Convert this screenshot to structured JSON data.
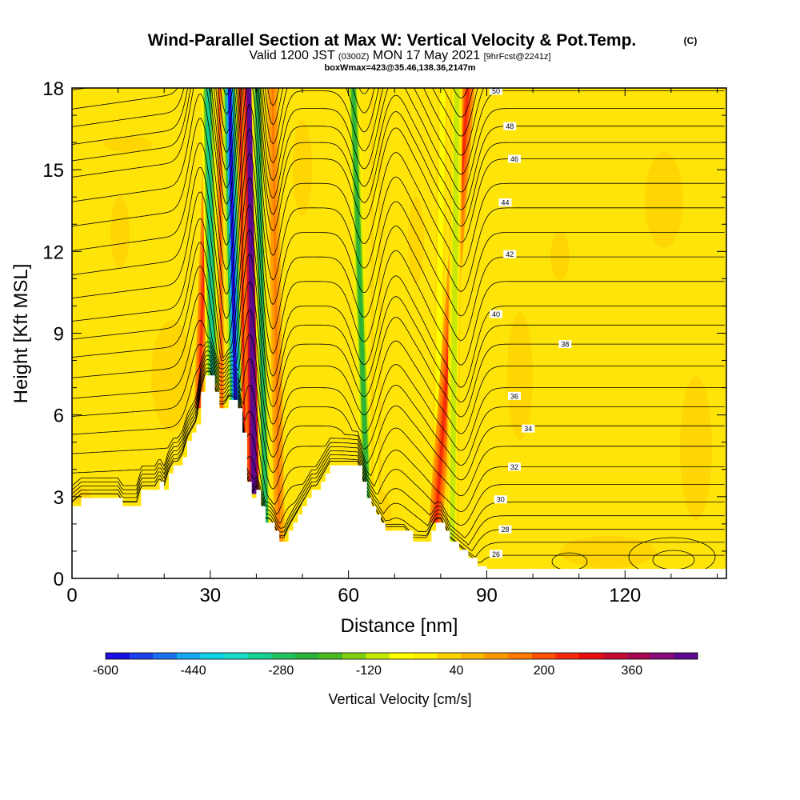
{
  "header": {
    "title_main": "Wind-Parallel Section at Max W: Vertical Velocity & Pot.Temp.",
    "title_copyright": "(C)",
    "valid_prefix": "Valid 1200 JST",
    "valid_zulu": "(0300Z)",
    "valid_day": "MON 17 May 2021",
    "valid_fcst": "[9hrFcst@2241z]",
    "box_info": "boxWmax=423@35.46,138.36,2147m"
  },
  "chart_data": {
    "type": "heatmap",
    "title": "Wind-Parallel Section at Max W: Vertical Velocity & Pot.Temp.",
    "xlabel": "Distance [nm]",
    "ylabel": "Height [Kft MSL]",
    "xlim": [
      0,
      142
    ],
    "ylim": [
      0,
      18
    ],
    "x_ticks": [
      0,
      30,
      60,
      90,
      120
    ],
    "x_tick_labels": [
      "0",
      "30",
      "60",
      "90",
      "120"
    ],
    "y_ticks": [
      0,
      3,
      6,
      9,
      12,
      15,
      18
    ],
    "y_tick_labels": [
      "0",
      "3",
      "6",
      "9",
      "12",
      "15",
      "18"
    ],
    "colorbar": {
      "label": "Vertical Velocity [cm/s]",
      "min": -600,
      "max": 480,
      "step": 40,
      "tick_values": [
        -600,
        -440,
        -280,
        -120,
        40,
        200,
        360
      ],
      "tick_labels": [
        "-600",
        "-440",
        "-280",
        "-120",
        "40",
        "200",
        "360"
      ],
      "colors": [
        "#1a0fe0",
        "#1c3fea",
        "#1b6ff0",
        "#14a8f0",
        "#10d2e8",
        "#14dcc6",
        "#18d090",
        "#22c060",
        "#2cb23a",
        "#4aba22",
        "#84d010",
        "#c8e80a",
        "#ffff00",
        "#fff000",
        "#ffd400",
        "#ffb800",
        "#ff9a00",
        "#ff7800",
        "#ff5200",
        "#f42a0a",
        "#e8100e",
        "#c80a30",
        "#a80a52",
        "#880a78",
        "#5a0a8a"
      ]
    },
    "terrain_kft": [
      [
        0,
        2.65
      ],
      [
        2,
        2.95
      ],
      [
        5,
        2.95
      ],
      [
        8,
        2.95
      ],
      [
        10,
        2.95
      ],
      [
        11,
        2.65
      ],
      [
        14,
        2.65
      ],
      [
        15,
        3.25
      ],
      [
        16,
        3.25
      ],
      [
        18,
        3.25
      ],
      [
        19,
        3.55
      ],
      [
        20,
        3.25
      ],
      [
        21,
        3.85
      ],
      [
        22,
        4.15
      ],
      [
        23,
        4.15
      ],
      [
        24,
        4.45
      ],
      [
        25,
        5.05
      ],
      [
        26,
        5.35
      ],
      [
        27,
        5.65
      ],
      [
        28,
        6.85
      ],
      [
        29,
        7.45
      ],
      [
        30,
        7.45
      ],
      [
        31,
        6.85
      ],
      [
        32,
        6.25
      ],
      [
        33,
        6.25
      ],
      [
        34,
        6.55
      ],
      [
        35,
        6.55
      ],
      [
        36,
        6.25
      ],
      [
        37,
        5.35
      ],
      [
        38,
        3.55
      ],
      [
        39,
        2.95
      ],
      [
        40,
        3.25
      ],
      [
        41,
        2.65
      ],
      [
        42,
        2.05
      ],
      [
        43,
        2.05
      ],
      [
        44,
        1.75
      ],
      [
        45,
        1.35
      ],
      [
        46,
        1.35
      ],
      [
        47,
        1.75
      ],
      [
        48,
        2.05
      ],
      [
        49,
        2.35
      ],
      [
        50,
        2.65
      ],
      [
        51,
        2.95
      ],
      [
        52,
        3.25
      ],
      [
        53,
        3.25
      ],
      [
        54,
        3.55
      ],
      [
        55,
        3.85
      ],
      [
        56,
        4.15
      ],
      [
        58,
        4.15
      ],
      [
        60,
        4.15
      ],
      [
        62,
        4.15
      ],
      [
        63,
        3.55
      ],
      [
        64,
        2.95
      ],
      [
        65,
        2.65
      ],
      [
        66,
        2.35
      ],
      [
        67,
        2.05
      ],
      [
        68,
        1.75
      ],
      [
        70,
        1.75
      ],
      [
        72,
        1.75
      ],
      [
        74,
        1.35
      ],
      [
        76,
        1.35
      ],
      [
        77,
        1.35
      ],
      [
        78,
        1.75
      ],
      [
        79,
        2.05
      ],
      [
        80,
        2.05
      ],
      [
        81,
        1.75
      ],
      [
        82,
        1.35
      ],
      [
        84,
        1.05
      ],
      [
        86,
        0.75
      ],
      [
        88,
        0.45
      ],
      [
        90,
        0.35
      ],
      [
        95,
        0.35
      ],
      [
        100,
        0.35
      ],
      [
        110,
        0.35
      ],
      [
        120,
        0.35
      ],
      [
        130,
        0.35
      ],
      [
        142,
        0.35
      ]
    ],
    "theta_isentropes": [
      {
        "level": 26,
        "base_kft": 0.85,
        "label_x": 92,
        "label_y_kft": 0.9
      },
      {
        "level": 28,
        "base_kft": 1.8,
        "label_x": 94,
        "label_y_kft": 1.8
      },
      {
        "level": 30,
        "base_kft": 2.8,
        "label_x": 93,
        "label_y_kft": 2.9
      },
      {
        "level": 32,
        "base_kft": 4.1,
        "label_x": 96,
        "label_y_kft": 4.1
      },
      {
        "level": 34,
        "base_kft": 5.6,
        "label_x": 99,
        "label_y_kft": 5.5
      },
      {
        "level": 36,
        "base_kft": 7.0,
        "label_x": 96,
        "label_y_kft": 6.7
      },
      {
        "level": 38,
        "base_kft": 8.6,
        "label_x": 107,
        "label_y_kft": 8.6
      },
      {
        "level": 40,
        "base_kft": 10.0,
        "label_x": 92,
        "label_y_kft": 9.7
      },
      {
        "level": 42,
        "base_kft": 11.8,
        "label_x": 95,
        "label_y_kft": 11.9
      },
      {
        "level": 44,
        "base_kft": 13.6,
        "label_x": 94,
        "label_y_kft": 13.8
      },
      {
        "level": 46,
        "base_kft": 15.4,
        "label_x": 96,
        "label_y_kft": 15.4
      },
      {
        "level": 48,
        "base_kft": 16.6,
        "label_x": 95,
        "label_y_kft": 16.6
      },
      {
        "level": 50,
        "base_kft": 17.9,
        "label_x": 92,
        "label_y_kft": 17.9
      }
    ],
    "vv_bands": [
      {
        "x_bottom": 27.5,
        "x_top": 30.0,
        "width": 2.0,
        "kind": "up",
        "value": 160
      },
      {
        "x_bottom": 30.5,
        "x_top": 29.5,
        "width": 2.8,
        "kind": "down",
        "value": -360
      },
      {
        "x_bottom": 32.5,
        "x_top": 32.0,
        "width": 1.2,
        "kind": "up",
        "value": 120
      },
      {
        "x_bottom": 35.5,
        "x_top": 34.2,
        "width": 3.2,
        "kind": "down",
        "value": -600
      },
      {
        "x_bottom": 37.5,
        "x_top": 36.5,
        "width": 1.3,
        "kind": "up",
        "value": 200
      },
      {
        "x_bottom": 39.5,
        "x_top": 38.5,
        "width": 2.8,
        "kind": "up",
        "value": 480
      },
      {
        "x_bottom": 42.0,
        "x_top": 40.2,
        "width": 2.6,
        "kind": "down",
        "value": -320
      },
      {
        "x_bottom": 45.0,
        "x_top": 43.5,
        "width": 2.4,
        "kind": "up",
        "value": 80
      },
      {
        "x_bottom": 64.0,
        "x_top": 61.0,
        "width": 2.6,
        "kind": "down",
        "value": -280
      },
      {
        "x_bottom": 66.0,
        "x_top": 66.0,
        "width": 2.2,
        "kind": "down",
        "value": -80
      },
      {
        "x_bottom": 79.0,
        "x_top": 80.5,
        "width": 2.0,
        "kind": "down",
        "value": -120
      },
      {
        "x_bottom": 79.0,
        "x_top": 86.0,
        "width": 3.0,
        "kind": "up",
        "value": 160
      },
      {
        "x_bottom": 82.5,
        "x_top": 83.5,
        "width": 2.6,
        "kind": "down",
        "value": -160
      }
    ]
  }
}
